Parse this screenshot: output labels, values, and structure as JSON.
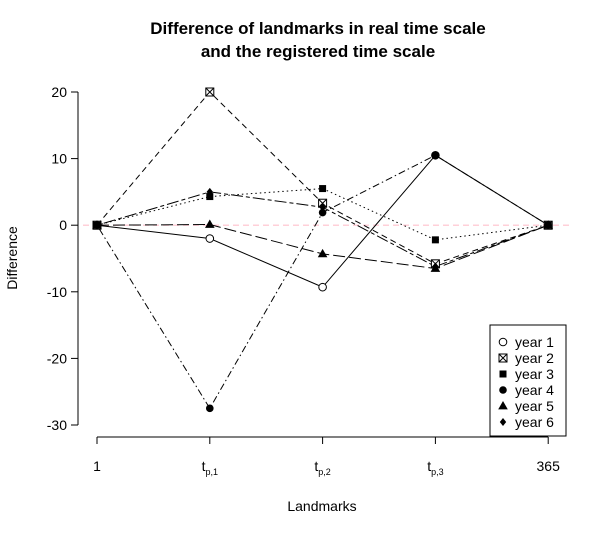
{
  "chart_data": {
    "type": "line",
    "title_line1": "Difference of landmarks in real time scale",
    "title_line2": "and the registered time scale",
    "xlabel": "Landmarks",
    "ylabel": "Difference",
    "categories": [
      {
        "main": "1",
        "sub": ""
      },
      {
        "main": "t",
        "sub": "p,1"
      },
      {
        "main": "t",
        "sub": "p,2"
      },
      {
        "main": "t",
        "sub": "p,3"
      },
      {
        "main": "365",
        "sub": ""
      }
    ],
    "yticks": [
      20,
      10,
      0,
      -10,
      -20,
      -30
    ],
    "ylim": [
      -30,
      20
    ],
    "reference_line": {
      "value": 0,
      "color": "#ffc0cb"
    },
    "legend_position": "bottom-right",
    "series": [
      {
        "name": "year 1",
        "marker": "circle-open",
        "dash": "solid",
        "values": [
          0,
          -2,
          -9.3,
          10.5,
          0
        ]
      },
      {
        "name": "year 2",
        "marker": "square-x",
        "dash": "dashed",
        "values": [
          0,
          20,
          3.3,
          -5.8,
          0
        ]
      },
      {
        "name": "year 3",
        "marker": "square-filled",
        "dash": "dotted",
        "values": [
          0,
          4.3,
          5.5,
          -2.2,
          0
        ]
      },
      {
        "name": "year 4",
        "marker": "circle-filled",
        "dash": "dashdot",
        "values": [
          0,
          -27.5,
          1.9,
          10.5,
          0
        ]
      },
      {
        "name": "year 5",
        "marker": "triangle-filled",
        "dash": "longdash",
        "values": [
          0,
          0.1,
          -4.3,
          -6.5,
          0
        ]
      },
      {
        "name": "year 6",
        "marker": "diamond-filled",
        "dash": "twodash",
        "values": [
          0,
          5,
          2.7,
          -6.2,
          0
        ]
      }
    ]
  }
}
